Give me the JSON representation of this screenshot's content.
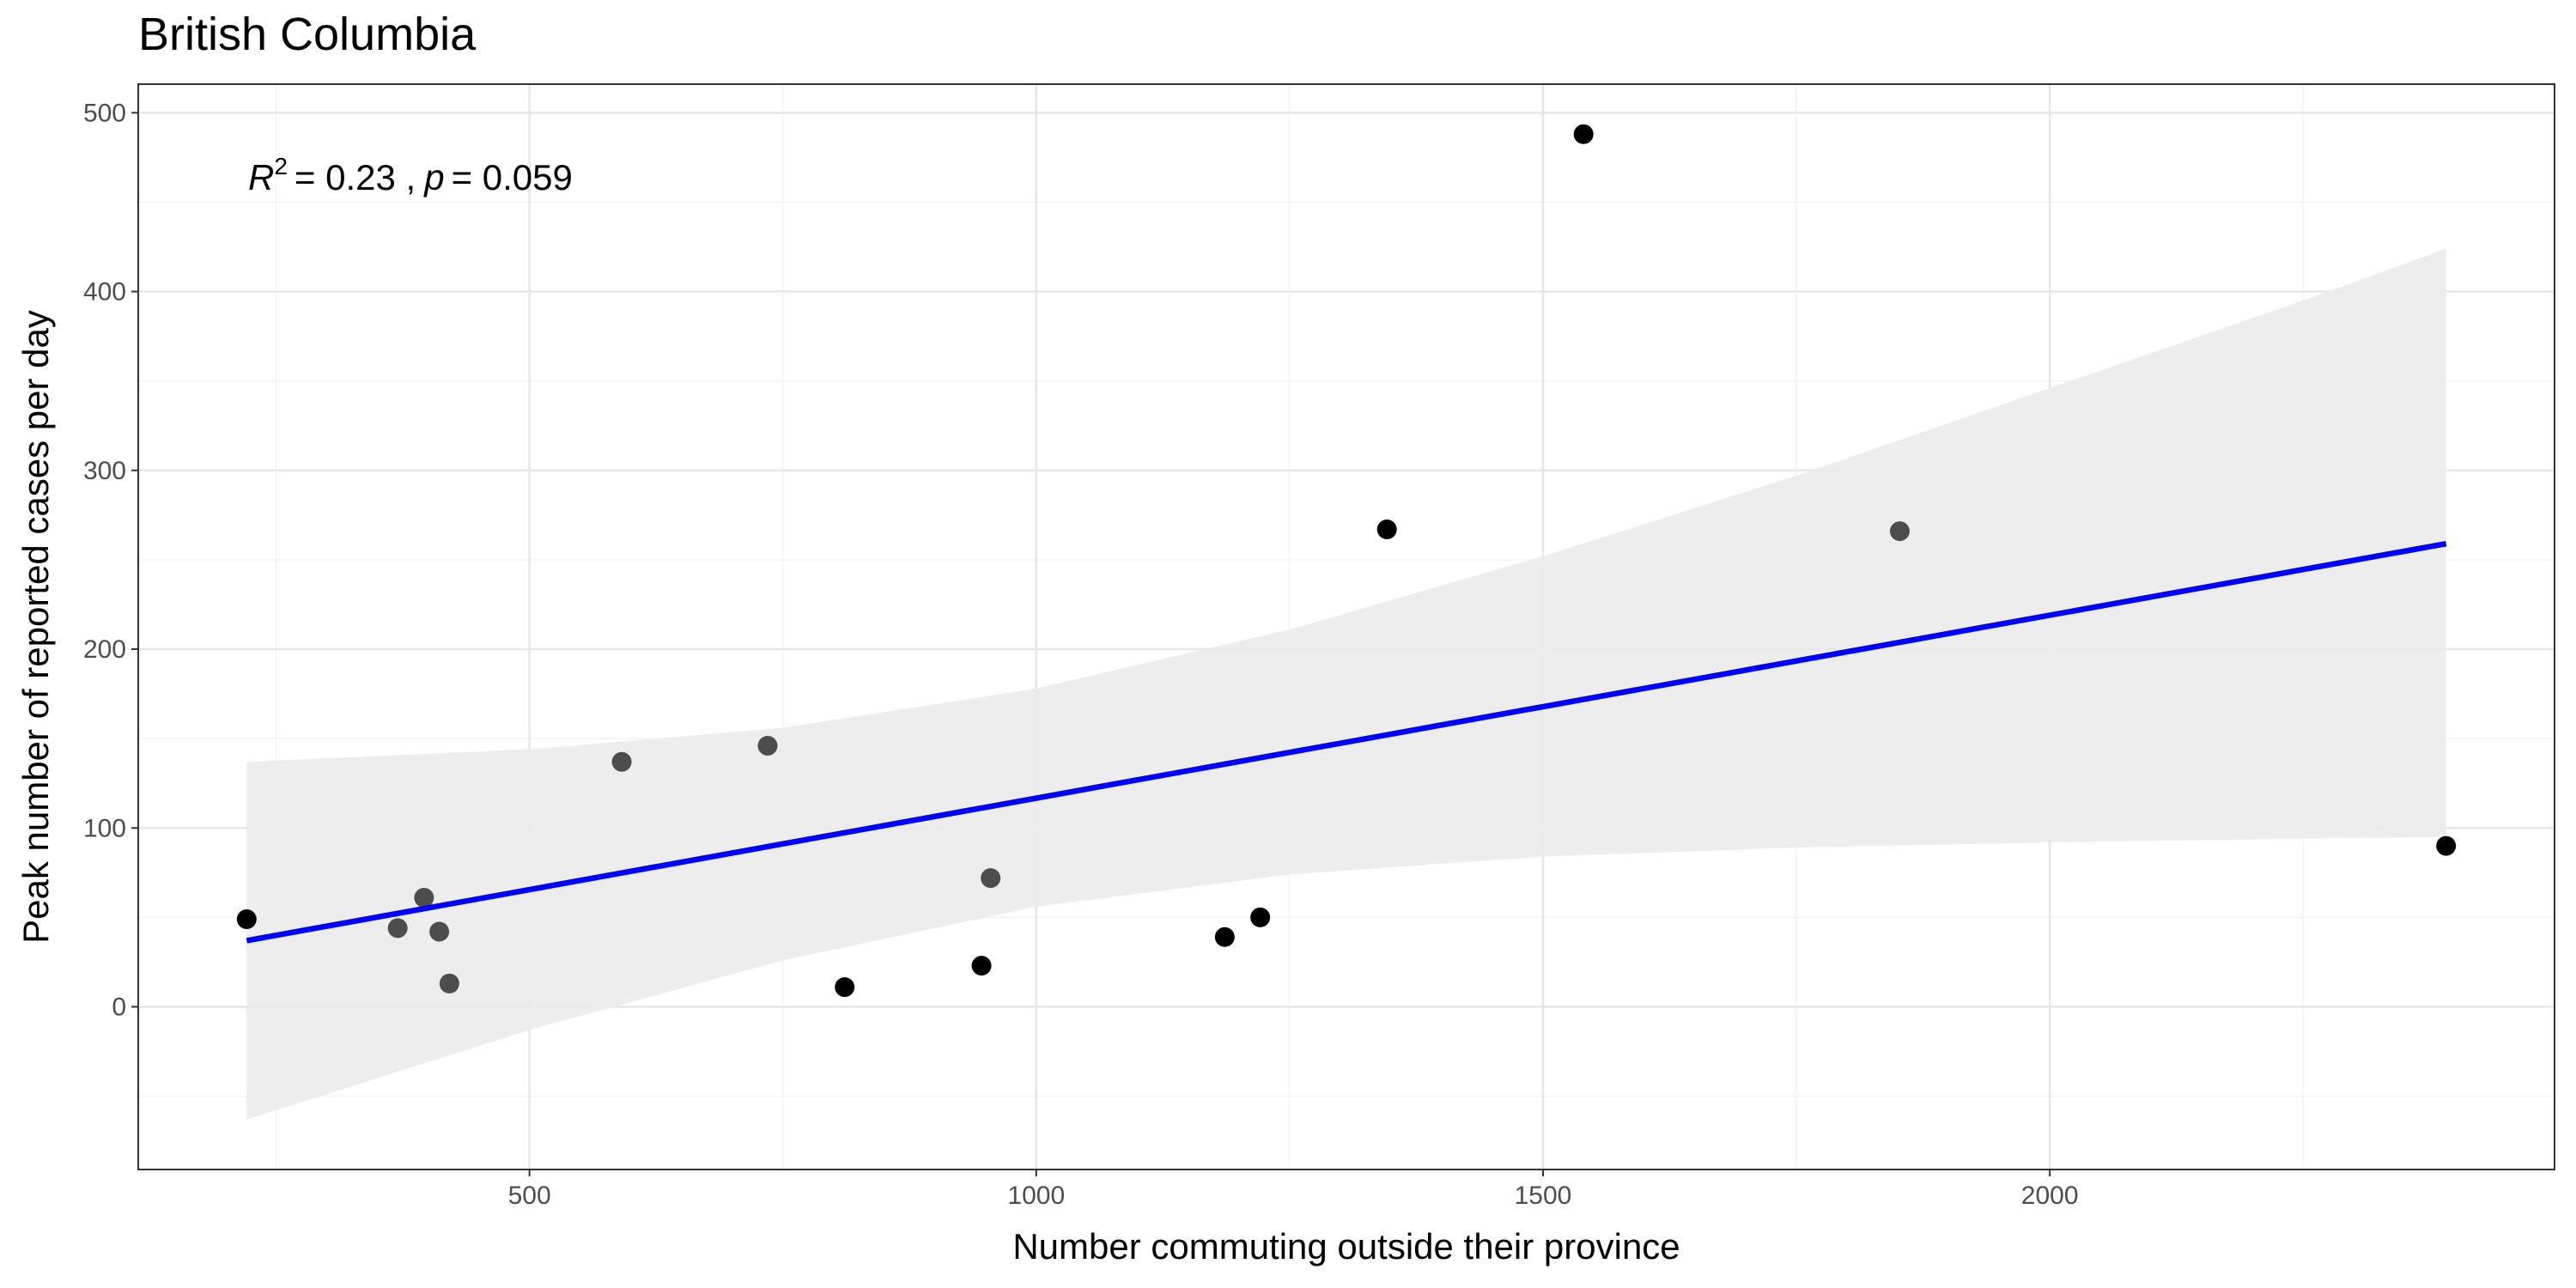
{
  "chart_data": {
    "type": "scatter",
    "title": "British Columbia",
    "x_label": "Number commuting outside their province",
    "y_label": "Peak number of reported cases per day",
    "annotation": {
      "r_label": "R",
      "r_exp": "2",
      "r_value": "= 0.23 ,",
      "p_label": "p",
      "p_value": "= 0.059"
    },
    "xlim": [
      114,
      2498
    ],
    "ylim": [
      -91,
      516
    ],
    "xticks": [
      500,
      1000,
      1500,
      2000
    ],
    "yticks": [
      0,
      100,
      200,
      300,
      400,
      500
    ],
    "xminor": [
      250,
      750,
      1250,
      1750,
      2250
    ],
    "yminor": [
      -50,
      50,
      150,
      250,
      350,
      450
    ],
    "grid": true,
    "x": [
      221,
      370,
      396,
      411,
      421,
      591,
      735,
      811,
      946,
      955,
      1186,
      1221,
      1346,
      1540,
      1852,
      2391
    ],
    "values": [
      49,
      44,
      61,
      42,
      13,
      137,
      146,
      11,
      23,
      72,
      39,
      50,
      267,
      488,
      266,
      90
    ],
    "colors": [
      "#000000",
      "#4d4d4d",
      "#4d4d4d",
      "#4d4d4d",
      "#4d4d4d",
      "#4d4d4d",
      "#4d4d4d",
      "#000000",
      "#000000",
      "#4d4d4d",
      "#000000",
      "#000000",
      "#000000",
      "#000000",
      "#4d4d4d",
      "#000000"
    ],
    "fit": {
      "color": "#0000ff",
      "x": [
        221,
        2391
      ],
      "values": [
        37,
        259
      ]
    },
    "band": {
      "color": "#ebebeb",
      "x": [
        221,
        500,
        750,
        1000,
        1250,
        1500,
        1750,
        2000,
        2250,
        2391
      ],
      "upper": [
        137,
        144,
        156,
        178,
        211,
        252,
        297,
        346,
        395,
        424
      ],
      "lower": [
        -63,
        -13,
        26,
        56,
        74,
        84,
        89,
        92,
        94,
        95
      ]
    }
  }
}
